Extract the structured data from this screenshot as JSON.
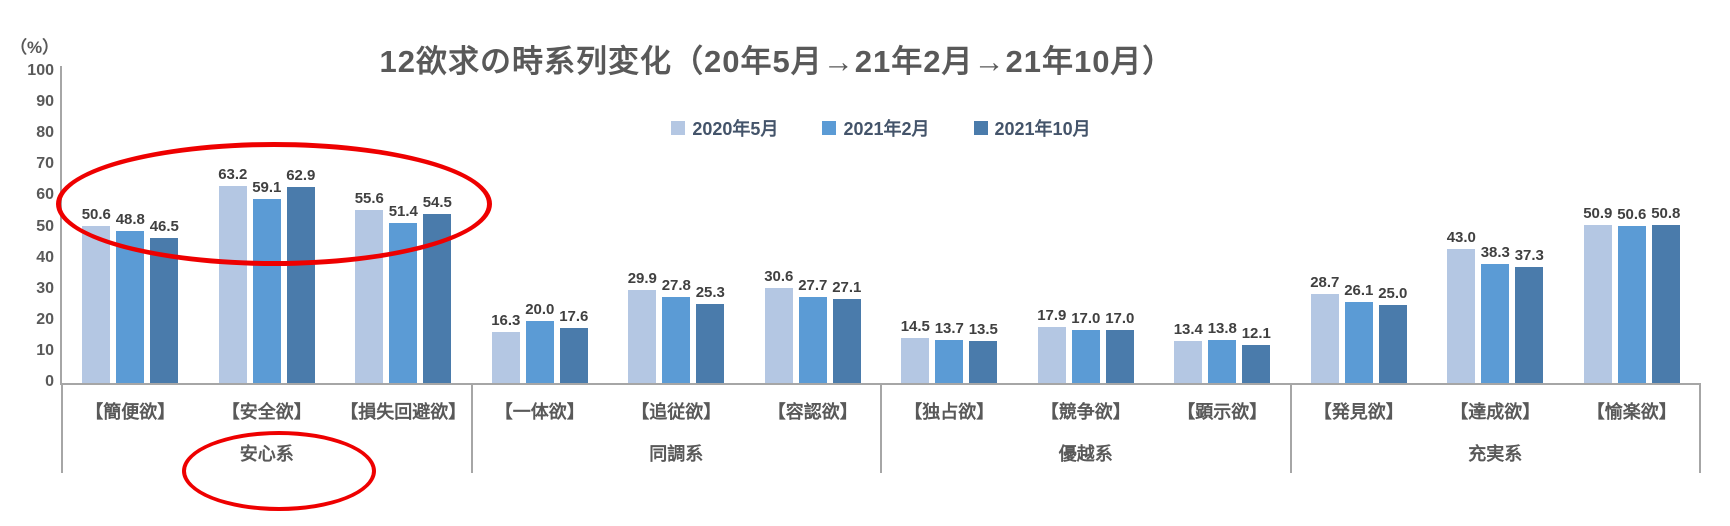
{
  "chart_data": {
    "type": "bar",
    "title": "12欲求の時系列変化（20年5月→21年2月→21年10月）",
    "y_axis_unit": "（%）",
    "ylim": [
      0,
      100
    ],
    "y_ticks": [
      100,
      90,
      80,
      70,
      60,
      50,
      40,
      30,
      20,
      10,
      0
    ],
    "legend_position": "top-center",
    "grid": false,
    "categories": [
      "【簡便欲】",
      "【安全欲】",
      "【損失回避欲】",
      "【一体欲】",
      "【追従欲】",
      "【容認欲】",
      "【独占欲】",
      "【競争欲】",
      "【顕示欲】",
      "【発見欲】",
      "【達成欲】",
      "【愉楽欲】"
    ],
    "group_labels": [
      "安心系",
      "同調系",
      "優越系",
      "充実系"
    ],
    "categories_per_group": 3,
    "series": [
      {
        "name": "2020年5月",
        "color": "#B4C7E3",
        "values": [
          50.6,
          63.2,
          55.6,
          16.3,
          29.9,
          30.6,
          14.5,
          17.9,
          13.4,
          28.7,
          43.0,
          50.9
        ]
      },
      {
        "name": "2021年2月",
        "color": "#5B9BD5",
        "values": [
          48.8,
          59.1,
          51.4,
          20.0,
          27.8,
          27.7,
          13.7,
          17.0,
          13.8,
          26.1,
          38.3,
          50.6
        ]
      },
      {
        "name": "2021年10月",
        "color": "#4A7BAB",
        "values": [
          46.5,
          62.9,
          54.5,
          17.6,
          25.3,
          27.1,
          13.5,
          17.0,
          12.1,
          25.0,
          37.3,
          50.8
        ]
      }
    ],
    "annotations": [
      {
        "shape": "ellipse",
        "around": "安心系の棒グラフ群（簡便欲・安全欲・損失回避欲）",
        "color": "#EE0000"
      },
      {
        "shape": "ellipse",
        "around": "安心系",
        "color": "#EE0000"
      }
    ],
    "colors": {
      "axis_line": "#A6A6A6",
      "axis_text": "#595959",
      "title_text": "#595959",
      "value_label_text": "#404040",
      "legend_text": "#44546A",
      "background": "#FFFFFF"
    }
  }
}
